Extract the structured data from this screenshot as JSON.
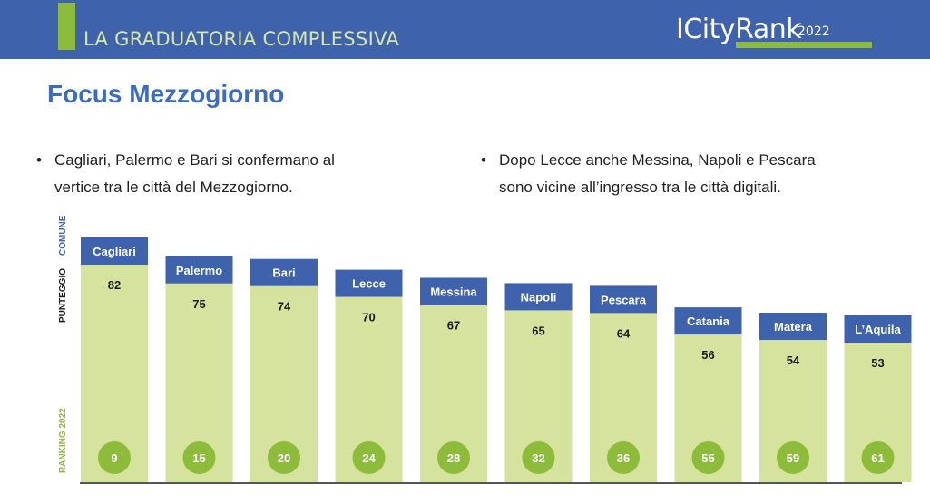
{
  "header": {
    "section_title": "LA GRADUATORIA COMPLESSIVA",
    "brand": "ICityRank",
    "brand_year": "2022"
  },
  "page_title": "Focus Mezzogiorno",
  "bullets": [
    {
      "line1": "Cagliari, Palermo e Bari si confermano al",
      "line2": "vertice tra le città del Mezzogiorno."
    },
    {
      "line1": "Dopo Lecce anche Messina, Napoli e Pescara",
      "line2": "sono vicine all’ingresso tra le città digitali."
    }
  ],
  "bullet_symbol": "•",
  "axis_labels": {
    "comune": "COMUNE",
    "punteggio": "PUNTEGGIO",
    "ranking": "RANKING 2022"
  },
  "colors": {
    "header_blue": "#3f62ad",
    "accent_green": "#8dbb3a",
    "bar_fill": "#d6e39f",
    "label_box": "#3f62ad",
    "rank_circle": "#8dbb3a",
    "title_blue": "#3d6cbf"
  },
  "chart_data": {
    "type": "bar",
    "categories": [
      "Cagliari",
      "Palermo",
      "Bari",
      "Lecce",
      "Messina",
      "Napoli",
      "Pescara",
      "Catania",
      "Matera",
      "L’Aquila"
    ],
    "values": [
      82,
      75,
      74,
      70,
      67,
      65,
      64,
      56,
      54,
      53
    ],
    "ranking_2022": [
      9,
      15,
      20,
      24,
      28,
      32,
      36,
      55,
      59,
      61
    ],
    "title": "",
    "xlabel": "COMUNE",
    "ylabel": "PUNTEGGIO",
    "secondary_label": "RANKING 2022",
    "grid": false,
    "legend": "none"
  }
}
